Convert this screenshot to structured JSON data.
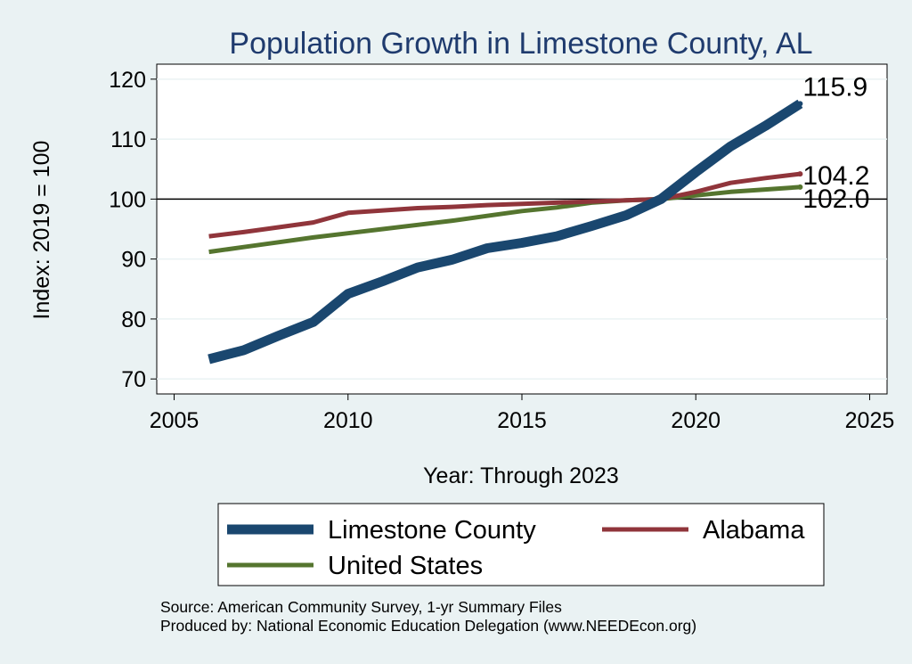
{
  "chart_data": {
    "type": "line",
    "title": "Population Growth in Limestone County, AL",
    "xlabel": "Year: Through 2023",
    "ylabel": "Index: 2019 = 100",
    "xlim": [
      2004.5,
      2025.5
    ],
    "ylim": [
      67.5,
      122.5
    ],
    "xticks": [
      2005,
      2010,
      2015,
      2020,
      2025
    ],
    "yticks": [
      70,
      80,
      90,
      100,
      110,
      120
    ],
    "reference_line": 100,
    "grid": true,
    "legend_position": "bottom",
    "series": [
      {
        "name": "Limestone  County",
        "color": "#1a476f",
        "x": [
          2006,
          2007,
          2008,
          2009,
          2010,
          2011,
          2012,
          2013,
          2014,
          2015,
          2016,
          2017,
          2018,
          2019,
          2020,
          2021,
          2022,
          2023
        ],
        "values": [
          73.3,
          74.8,
          77.2,
          79.5,
          84.2,
          86.3,
          88.6,
          89.9,
          91.8,
          92.7,
          93.8,
          95.5,
          97.3,
          100.0,
          104.5,
          108.8,
          112.2,
          115.9
        ],
        "end_label": "115.9"
      },
      {
        "name": "Alabama",
        "color": "#90353b",
        "x": [
          2006,
          2007,
          2008,
          2009,
          2010,
          2011,
          2012,
          2013,
          2014,
          2015,
          2016,
          2017,
          2018,
          2019,
          2020,
          2021,
          2022,
          2023
        ],
        "values": [
          93.8,
          94.5,
          95.3,
          96.1,
          97.7,
          98.1,
          98.5,
          98.7,
          99.0,
          99.2,
          99.4,
          99.6,
          99.8,
          100.0,
          101.2,
          102.7,
          103.5,
          104.2
        ],
        "end_label": "104.2"
      },
      {
        "name": "United States",
        "color": "#55752f",
        "x": [
          2006,
          2007,
          2008,
          2009,
          2010,
          2011,
          2012,
          2013,
          2014,
          2015,
          2016,
          2017,
          2018,
          2019,
          2020,
          2021,
          2022,
          2023
        ],
        "values": [
          91.2,
          92.0,
          92.8,
          93.6,
          94.3,
          95.0,
          95.7,
          96.4,
          97.2,
          98.0,
          98.6,
          99.4,
          99.8,
          100.0,
          100.6,
          101.2,
          101.6,
          102.0
        ],
        "end_label": "102.0"
      }
    ]
  },
  "notes": {
    "source": "Source: American Community Survey, 1-yr Summary Files",
    "produced_by": "Produced by: National Economic Education Delegation (www.NEEDEcon.org)"
  }
}
